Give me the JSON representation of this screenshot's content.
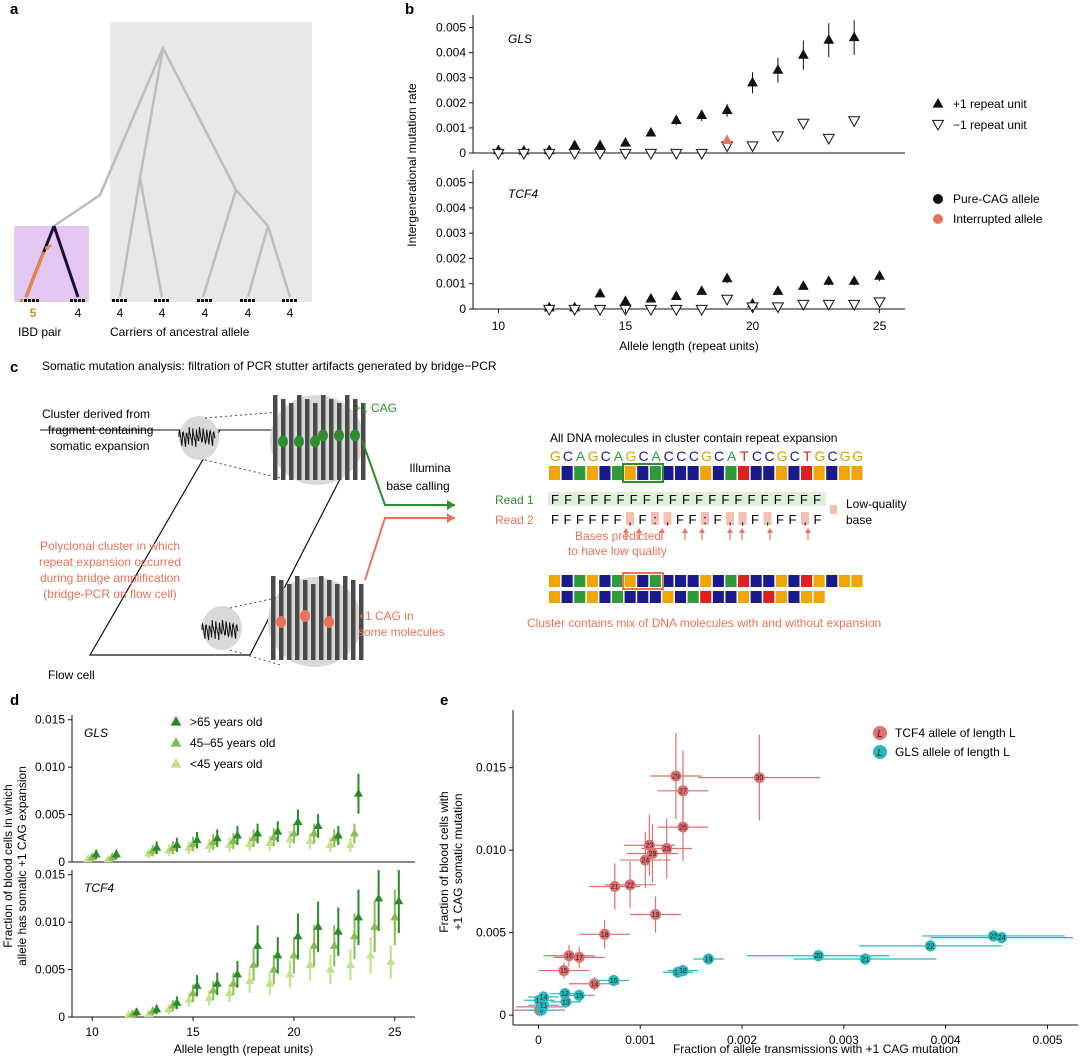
{
  "panels": {
    "a": "a",
    "b": "b",
    "c": "c",
    "d": "d",
    "e": "e"
  },
  "panel_a": {
    "count_ibd_left": "5",
    "count_ibd_right": "4",
    "carrier_counts": [
      "4",
      "4",
      "4",
      "4",
      "4"
    ],
    "label_ibd": "IBD pair",
    "label_carriers": "Carriers of ancestral allele",
    "colors": {
      "shade": "#e8e8e8",
      "ibd_shade": "#e5c8f2",
      "branch": "#bdbdbd",
      "ibd_branch": "#1a1033",
      "ibd_orange": "#e8873c"
    }
  },
  "panel_c": {
    "title": "Somatic mutation analysis: filtration of PCR stutter artifacts generated by bridge−PCR",
    "cluster_label": [
      "Cluster derived from",
      "fragment containing",
      "somatic expansion"
    ],
    "plus_cag": "+1 CAG",
    "illumina": [
      "Illumina",
      "base calling"
    ],
    "all_dna": "All DNA molecules in cluster contain repeat expansion",
    "sequence": "GCAGCAGCACCCGCATCCGCTGCGG",
    "read1_label": "Read 1",
    "read1_seq": "FFFFFFFFFFFFFFFFFFFFF",
    "read2_label": "Read 2",
    "read2_seq": "FFFFFF,F:,FF:F,,F,FF,F",
    "low_quality": [
      "Low-quality",
      "base"
    ],
    "predicted": [
      "Bases predicted",
      "to have low quality"
    ],
    "polyclonal": [
      "Polyclonal cluster in which",
      "repeat expansion occurred",
      "during bridge amplification",
      "(bridge-PCR on flow cell)"
    ],
    "plus_cag_some": [
      "+1 CAG in",
      "some molecules"
    ],
    "mix_text": "Cluster contains mix of DNA molecules with and without expansion",
    "flow_cell": "Flow cell",
    "colors": {
      "green": "#2e8b2e",
      "salmon": "#e8735a",
      "orange": "#f0a500",
      "navy": "#1a1a8c",
      "red": "#e0201c",
      "seqgreen": "#2e9a3a"
    }
  },
  "chart_data": [
    {
      "panel": "b",
      "type": "scatter",
      "xlabel": "Allele length (repeat units)",
      "ylabel": "Intergenerational mutation rate",
      "xlim": [
        9,
        26
      ],
      "ylim": [
        0,
        0.0055
      ],
      "xticks": [
        10,
        15,
        20,
        25
      ],
      "yticks": [
        "0",
        "0.001",
        "0.002",
        "0.003",
        "0.004",
        "0.005"
      ],
      "legend": [
        "+1 repeat unit",
        "−1 repeat unit",
        "Pure-CAG allele",
        "Interrupted allele"
      ],
      "subplots": [
        {
          "name": "GLS",
          "series": [
            {
              "name": "+1 repeat unit",
              "marker": "triangle-up",
              "x": [
                10,
                11,
                12,
                13,
                14,
                15,
                16,
                17,
                18,
                19,
                20,
                21,
                22,
                23,
                24
              ],
              "y": [
                0.0001,
                8e-05,
                0.0001,
                0.0003,
                0.0003,
                0.0004,
                0.0008,
                0.0013,
                0.0015,
                0.0017,
                0.0028,
                0.0033,
                0.0039,
                0.0045,
                0.0046
              ]
            },
            {
              "name": "−1 repeat unit",
              "marker": "triangle-down",
              "x": [
                10,
                11,
                12,
                13,
                14,
                15,
                16,
                17,
                18,
                19,
                20,
                21,
                22,
                23,
                24
              ],
              "y": [
                0.0,
                0.0,
                0.0,
                0.0,
                0.0,
                0.0,
                0.0,
                0.0,
                0.0,
                0.0003,
                0.0003,
                0.0007,
                0.0012,
                0.0006,
                0.0013
              ]
            },
            {
              "name": "Interrupted allele",
              "marker": "triangle-up",
              "x": [
                19
              ],
              "y": [
                0.0005
              ]
            }
          ]
        },
        {
          "name": "TCF4",
          "series": [
            {
              "name": "+1 repeat unit",
              "marker": "triangle-up",
              "x": [
                12,
                13,
                14,
                15,
                16,
                17,
                18,
                19,
                20,
                21,
                22,
                23,
                24,
                25
              ],
              "y": [
                5e-05,
                5e-05,
                0.0006,
                0.0003,
                0.0004,
                0.0005,
                0.0007,
                0.0012,
                0.0002,
                0.0007,
                0.0009,
                0.0011,
                0.0011,
                0.0013
              ]
            },
            {
              "name": "−1 repeat unit",
              "marker": "triangle-down",
              "x": [
                12,
                13,
                14,
                15,
                16,
                17,
                18,
                19,
                20,
                21,
                22,
                23,
                24,
                25
              ],
              "y": [
                0,
                0,
                0,
                0,
                0,
                0,
                0,
                0.0004,
                0.0001,
                0.0001,
                0.0002,
                0.0002,
                0.0002,
                0.0003
              ]
            }
          ]
        }
      ]
    },
    {
      "panel": "d",
      "type": "scatter",
      "xlabel": "Allele length (repeat units)",
      "ylabel": "Fraction of blood cells in which allele has somatic +1 CAG expansion",
      "xlim": [
        9,
        26
      ],
      "ylim": [
        0,
        0.0155
      ],
      "xticks": [
        10,
        15,
        20,
        25
      ],
      "yticks": [
        "0",
        "0.005",
        "0.010",
        "0.015"
      ],
      "legend": [
        ">65 years old",
        "45–65 years old",
        "<45 years old"
      ],
      "colors": [
        "#2a8a2a",
        "#8bbb55",
        "#bfe28a"
      ],
      "subplots": [
        {
          "name": "GLS",
          "series": [
            {
              "name": ">65 years old",
              "x": [
                10,
                11,
                13,
                14,
                15,
                16,
                17,
                18,
                19,
                20,
                21,
                22,
                23
              ],
              "y": [
                0.0008,
                0.0008,
                0.0015,
                0.0018,
                0.0023,
                0.0025,
                0.0028,
                0.003,
                0.0032,
                0.0042,
                0.0038,
                0.0028,
                0.0072
              ]
            },
            {
              "name": "45–65 years old",
              "x": [
                10,
                11,
                13,
                14,
                15,
                16,
                17,
                18,
                19,
                20,
                21,
                22,
                23
              ],
              "y": [
                0.0005,
                0.0005,
                0.0012,
                0.0015,
                0.0019,
                0.0021,
                0.0022,
                0.0025,
                0.0026,
                0.003,
                0.003,
                0.0025,
                0.003
              ]
            },
            {
              "name": "<45 years old",
              "x": [
                10,
                11,
                13,
                14,
                15,
                16,
                17,
                18,
                19,
                20,
                21,
                22,
                23
              ],
              "y": [
                0.0003,
                0.0003,
                0.0009,
                0.0012,
                0.0015,
                0.0017,
                0.0018,
                0.0019,
                0.002,
                0.0024,
                0.0022,
                0.0018,
                0.0018
              ]
            }
          ]
        },
        {
          "name": "TCF4",
          "series": [
            {
              "name": ">65 years old",
              "x": [
                12,
                13,
                14,
                15,
                16,
                17,
                18,
                19,
                20,
                21,
                22,
                23,
                24,
                25
              ],
              "y": [
                0.0005,
                0.0008,
                0.0015,
                0.0033,
                0.0035,
                0.0045,
                0.0075,
                0.0065,
                0.0085,
                0.0095,
                0.009,
                0.0105,
                0.0125,
                0.0122
              ]
            },
            {
              "name": "45–65 years old",
              "x": [
                12,
                13,
                14,
                15,
                16,
                17,
                18,
                19,
                20,
                21,
                22,
                23,
                24,
                25
              ],
              "y": [
                0.0003,
                0.0006,
                0.0012,
                0.0025,
                0.0028,
                0.0035,
                0.0055,
                0.005,
                0.0065,
                0.0075,
                0.0075,
                0.0085,
                0.0095,
                0.0105
              ]
            },
            {
              "name": "<45 years old",
              "x": [
                12,
                13,
                14,
                15,
                16,
                17,
                18,
                19,
                20,
                21,
                22,
                23,
                24,
                25
              ],
              "y": [
                0.0002,
                0.0003,
                0.0008,
                0.0018,
                0.002,
                0.0025,
                0.0038,
                0.0035,
                0.0045,
                0.0055,
                0.005,
                0.0055,
                0.0065,
                0.0058
              ]
            }
          ]
        }
      ]
    },
    {
      "panel": "e",
      "type": "scatter",
      "xlabel": "Fraction of allele transmissions with +1 CAG mutation",
      "ylabel": "Fraction of blood cells with +1 CAG somatic mutation",
      "xlim": [
        -0.00025,
        0.0053
      ],
      "ylim": [
        -0.0006,
        0.0185
      ],
      "xticks": [
        "0",
        "0.001",
        "0.002",
        "0.003",
        "0.004",
        "0.005"
      ],
      "yticks": [
        "0",
        "0.005",
        "0.010",
        "0.015"
      ],
      "legend": [
        "TCF4 allele of length L",
        "GLS allele of length L"
      ],
      "legend_marker": "L",
      "colors": {
        "TCF4": "#e07070",
        "GLS": "#2ab8bc"
      },
      "series": [
        {
          "name": "TCF4",
          "points": [
            {
              "label": "12",
              "x": 1e-05,
              "y": 0.0003
            },
            {
              "label": "13",
              "x": 3e-05,
              "y": 0.0005
            },
            {
              "label": "14",
              "x": 0.00055,
              "y": 0.0019
            },
            {
              "label": "15",
              "x": 0.00025,
              "y": 0.0027
            },
            {
              "label": "16",
              "x": 0.0003,
              "y": 0.0036
            },
            {
              "label": "17",
              "x": 0.0004,
              "y": 0.0035
            },
            {
              "label": "18",
              "x": 0.00065,
              "y": 0.0049
            },
            {
              "label": "19",
              "x": 0.00115,
              "y": 0.0061
            },
            {
              "label": "21",
              "x": 0.00075,
              "y": 0.0078
            },
            {
              "label": "22",
              "x": 0.0009,
              "y": 0.0079
            },
            {
              "label": "23",
              "x": 0.00109,
              "y": 0.0103
            },
            {
              "label": "24",
              "x": 0.00105,
              "y": 0.0094
            },
            {
              "label": "25",
              "x": 0.00126,
              "y": 0.0101
            },
            {
              "label": "26",
              "x": 0.00142,
              "y": 0.0114
            },
            {
              "label": "27",
              "x": 0.00142,
              "y": 0.0136
            },
            {
              "label": "28",
              "x": 0.00112,
              "y": 0.0098
            },
            {
              "label": "29",
              "x": 0.00135,
              "y": 0.0145
            },
            {
              "label": "30",
              "x": 0.00217,
              "y": 0.0144
            }
          ]
        },
        {
          "name": "GLS",
          "points": [
            {
              "label": "9",
              "x": 3e-05,
              "y": 0.0003
            },
            {
              "label": "10",
              "x": 1e-05,
              "y": 0.0009
            },
            {
              "label": "11",
              "x": 5e-05,
              "y": 0.0006
            },
            {
              "label": "12",
              "x": 0.00026,
              "y": 0.0013
            },
            {
              "label": "13",
              "x": 0.00027,
              "y": 0.0008
            },
            {
              "label": "14",
              "x": 5e-05,
              "y": 0.0011
            },
            {
              "label": "15",
              "x": 0.0004,
              "y": 0.0012
            },
            {
              "label": "16",
              "x": 0.00074,
              "y": 0.0021
            },
            {
              "label": "17",
              "x": 0.00137,
              "y": 0.0026
            },
            {
              "label": "18",
              "x": 0.00142,
              "y": 0.0027
            },
            {
              "label": "19",
              "x": 0.00167,
              "y": 0.0034
            },
            {
              "label": "20",
              "x": 0.00275,
              "y": 0.0036
            },
            {
              "label": "21",
              "x": 0.00321,
              "y": 0.0034
            },
            {
              "label": "22",
              "x": 0.00385,
              "y": 0.0042
            },
            {
              "label": "23",
              "x": 0.00447,
              "y": 0.0048
            },
            {
              "label": "24",
              "x": 0.00455,
              "y": 0.0047
            }
          ]
        }
      ]
    }
  ]
}
